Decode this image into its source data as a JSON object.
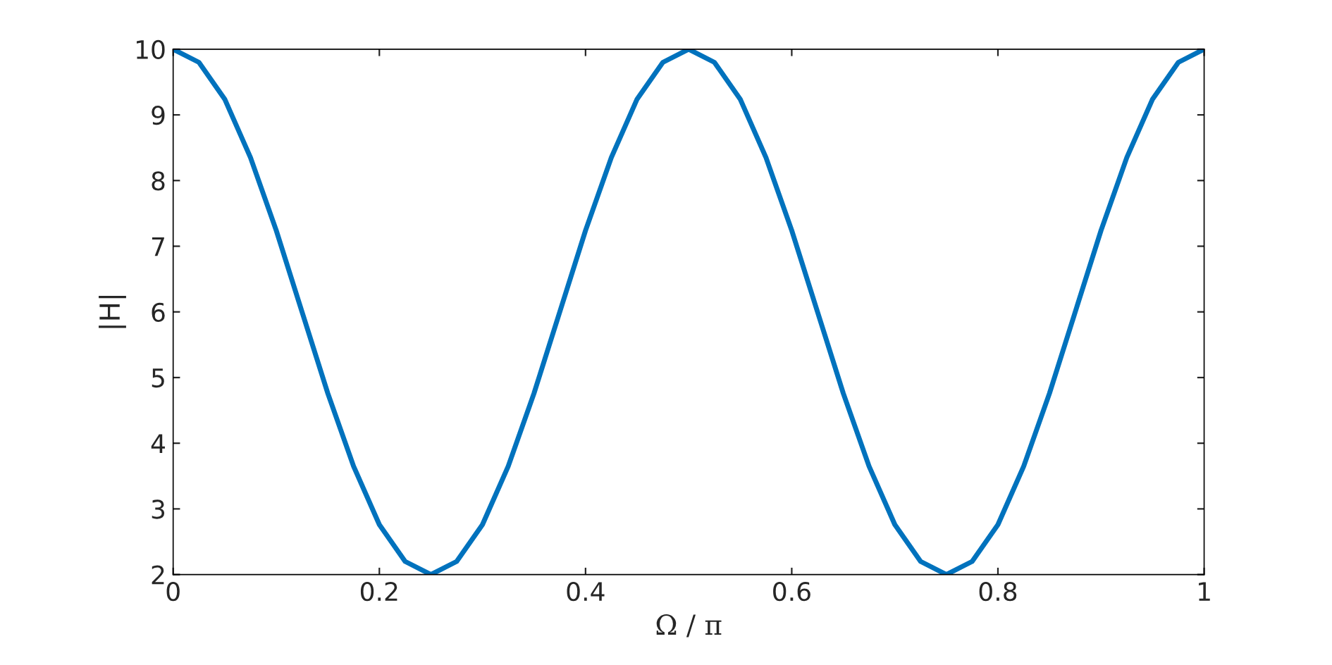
{
  "chart_data": {
    "type": "line",
    "xlabel": "Ω / π",
    "ylabel": "|H|",
    "x": [
      0,
      0.025,
      0.05,
      0.075,
      0.1,
      0.125,
      0.15,
      0.175,
      0.2,
      0.225,
      0.25,
      0.275,
      0.3,
      0.325,
      0.35,
      0.375,
      0.4,
      0.425,
      0.45,
      0.475,
      0.5,
      0.525,
      0.55,
      0.575,
      0.6,
      0.625,
      0.65,
      0.675,
      0.7,
      0.725,
      0.75,
      0.775,
      0.8,
      0.825,
      0.85,
      0.875,
      0.9,
      0.925,
      0.95,
      0.975,
      1
    ],
    "series": [
      {
        "color": "#0072bd",
        "values": [
          10,
          9.8,
          9.24,
          8.35,
          7.24,
          6,
          4.76,
          3.65,
          2.76,
          2.2,
          2,
          2.2,
          2.76,
          3.65,
          4.76,
          6,
          7.24,
          8.35,
          9.24,
          9.8,
          10,
          9.8,
          9.24,
          8.35,
          7.24,
          6,
          4.76,
          3.65,
          2.76,
          2.2,
          2,
          2.2,
          2.76,
          3.65,
          4.76,
          6,
          7.24,
          8.35,
          9.24,
          9.8,
          10
        ]
      }
    ],
    "xlim": [
      0,
      1
    ],
    "xticks": [
      0,
      0.2,
      0.4,
      0.6,
      0.8,
      1
    ],
    "ylim": [
      2,
      10
    ],
    "yticks": [
      2,
      3,
      4,
      5,
      6,
      7,
      8,
      9,
      10
    ],
    "grid": false,
    "legend": false,
    "marker": "none",
    "line_style": "solid"
  }
}
